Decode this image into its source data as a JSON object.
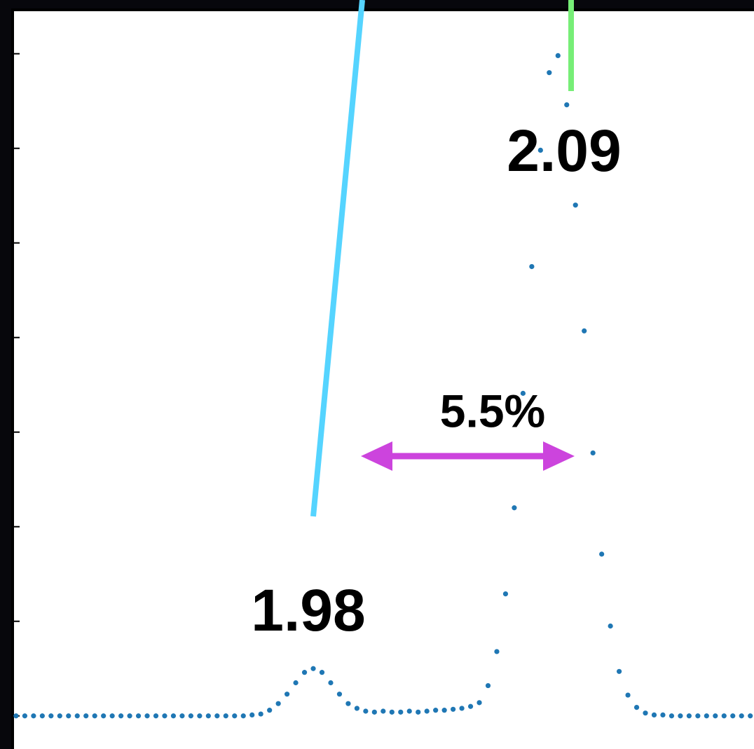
{
  "chart_data": {
    "type": "scatter",
    "annotations": [
      "2.09",
      "1.98",
      "5.5%"
    ],
    "color": "#1f77b4",
    "xlim": [
      1.8437,
      2.1817
    ],
    "ylim": [
      -0.35,
      7.42
    ],
    "yticks": [
      0,
      1,
      2,
      3,
      4,
      5,
      6,
      7
    ],
    "x": [
      1.844,
      1.848,
      1.852,
      1.856,
      1.86,
      1.864,
      1.868,
      1.872,
      1.876,
      1.88,
      1.884,
      1.888,
      1.892,
      1.896,
      1.9,
      1.904,
      1.908,
      1.912,
      1.916,
      1.92,
      1.924,
      1.928,
      1.932,
      1.936,
      1.94,
      1.944,
      1.948,
      1.952,
      1.956,
      1.96,
      1.964,
      1.968,
      1.972,
      1.976,
      1.98,
      1.984,
      1.988,
      1.992,
      1.996,
      2.0,
      2.004,
      2.008,
      2.012,
      2.016,
      2.02,
      2.024,
      2.028,
      2.032,
      2.036,
      2.04,
      2.044,
      2.048,
      2.052,
      2.056,
      2.06,
      2.064,
      2.068,
      2.072,
      2.076,
      2.08,
      2.084,
      2.088,
      2.092,
      2.096,
      2.1,
      2.104,
      2.108,
      2.112,
      2.116,
      2.12,
      2.124,
      2.128,
      2.132,
      2.136,
      2.14,
      2.144,
      2.148,
      2.152,
      2.156,
      2.16,
      2.164,
      2.168,
      2.172,
      2.176,
      2.18
    ],
    "values": [
      0,
      0,
      0,
      0,
      0,
      0,
      0,
      0,
      0,
      0,
      0,
      0,
      0,
      0,
      0,
      0,
      0,
      0,
      0,
      0,
      0,
      0,
      0,
      0,
      0,
      0,
      0,
      0.01,
      0.02,
      0.06,
      0.13,
      0.23,
      0.35,
      0.46,
      0.5,
      0.46,
      0.35,
      0.23,
      0.13,
      0.08,
      0.05,
      0.04,
      0.05,
      0.04,
      0.04,
      0.05,
      0.04,
      0.05,
      0.06,
      0.06,
      0.07,
      0.08,
      0.1,
      0.14,
      0.32,
      0.68,
      1.29,
      2.2,
      3.41,
      4.75,
      5.98,
      6.8,
      6.98,
      6.46,
      5.4,
      4.07,
      2.78,
      1.71,
      0.95,
      0.47,
      0.22,
      0.09,
      0.03,
      0.01,
      0.01,
      0,
      0,
      0,
      0,
      0,
      0,
      0,
      0,
      0,
      0
    ]
  }
}
